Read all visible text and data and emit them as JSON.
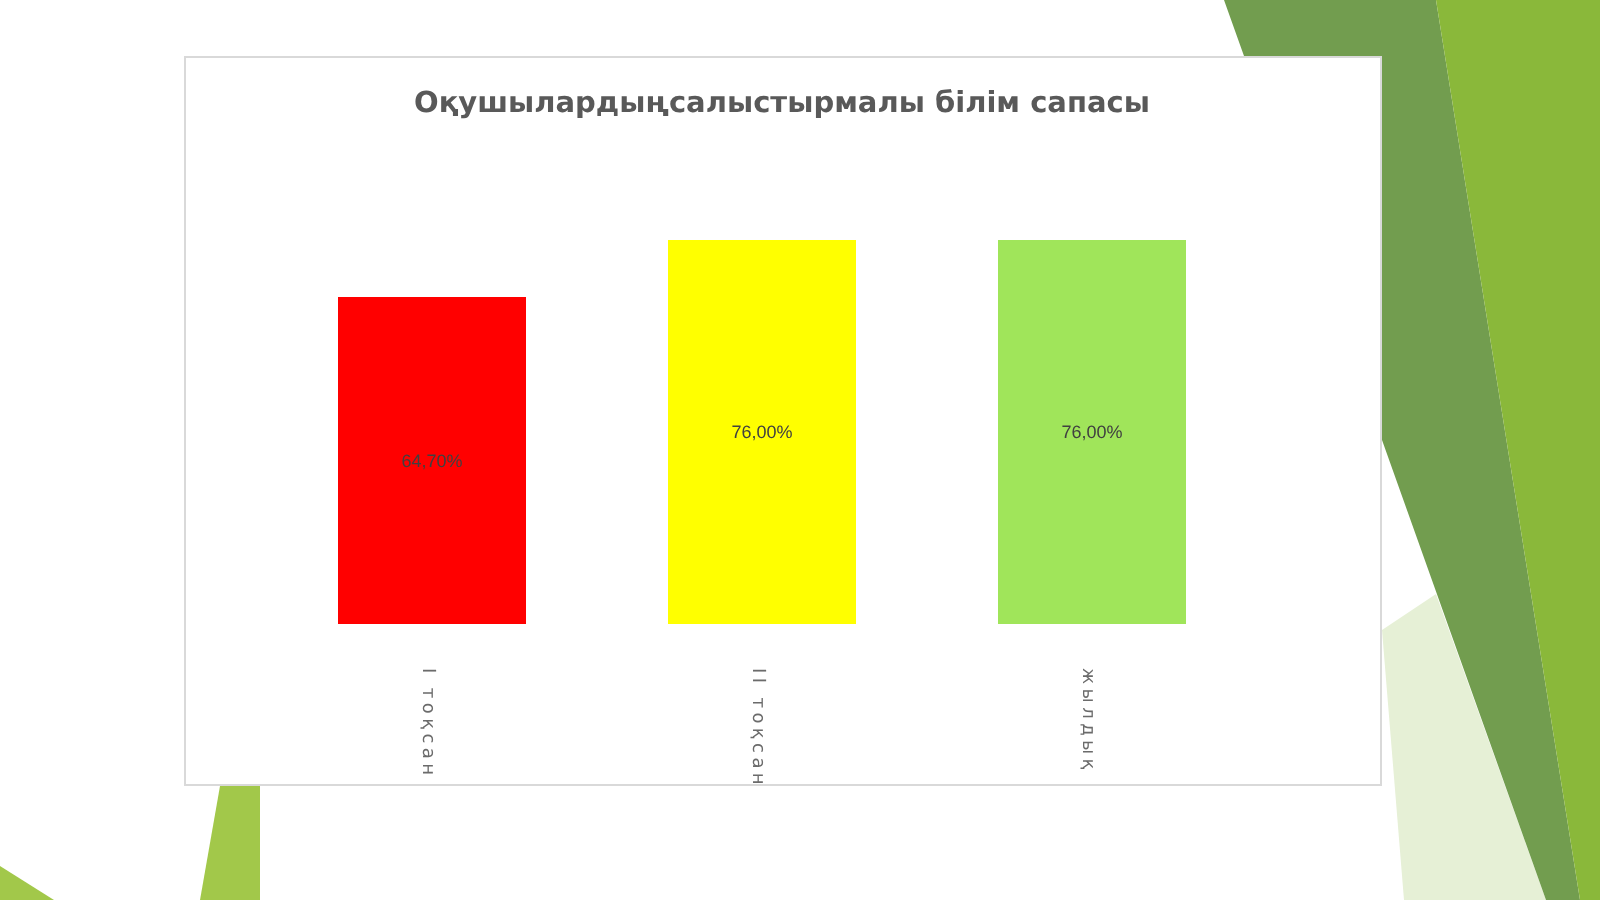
{
  "chart_data": {
    "type": "bar",
    "title": "Оқушылардыңсалыстырмалы білім сапасы",
    "categories": [
      "І тоқсан",
      "ІІ тоқсан",
      "жылдық"
    ],
    "values": [
      64.7,
      76,
      76
    ],
    "colors": [
      "#ff0000",
      "#ffff00",
      "#a0e55a"
    ],
    "value_labels": [
      "64,70%",
      "76,00%",
      "76,00%"
    ]
  }
}
